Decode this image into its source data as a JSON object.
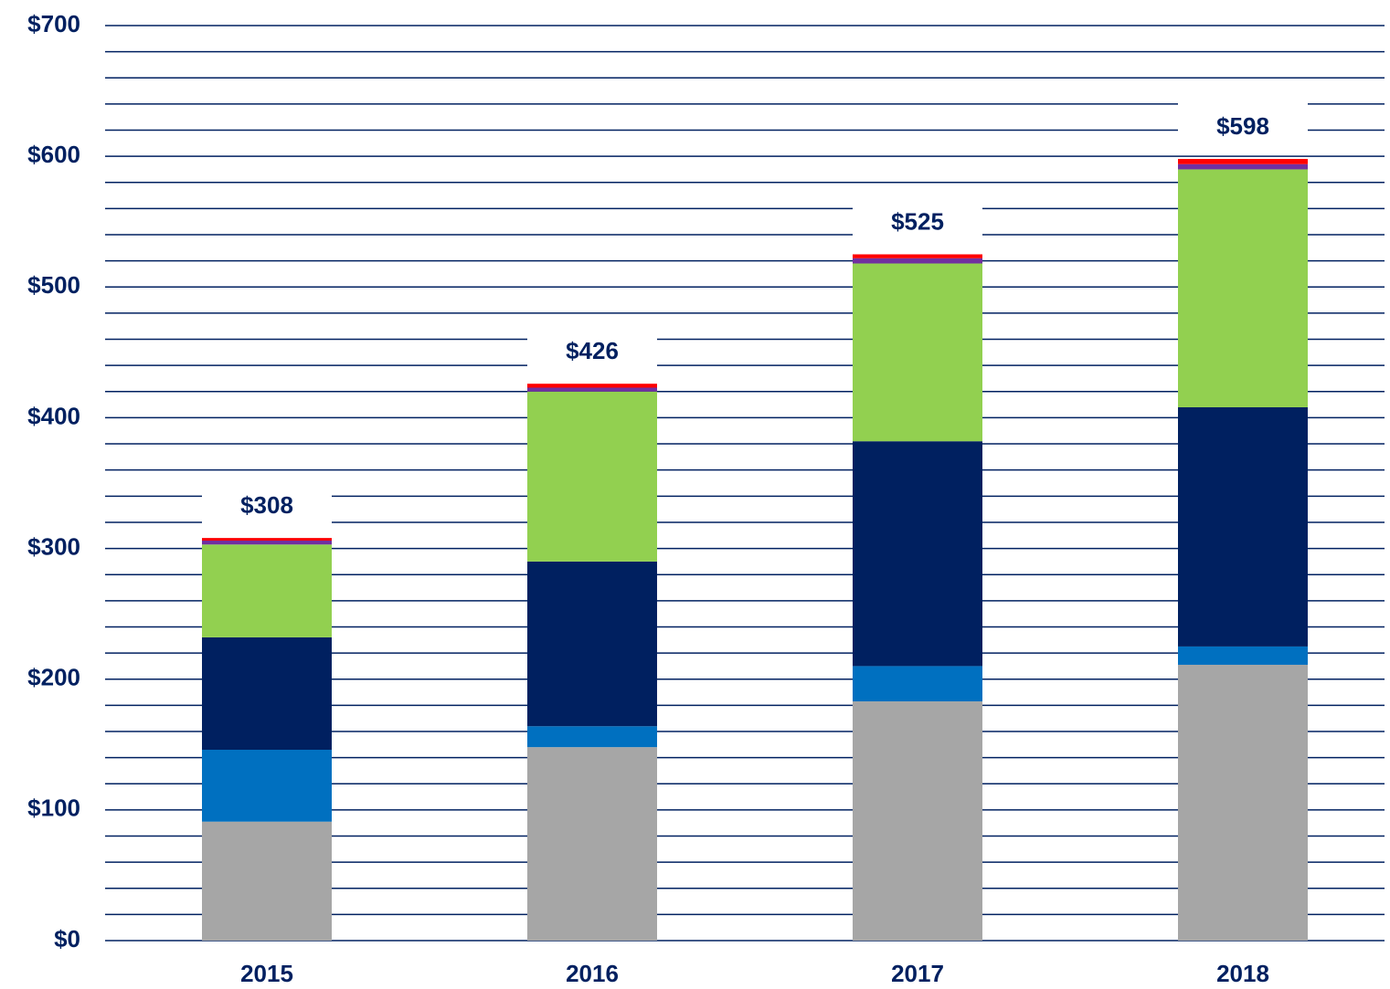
{
  "chart_data": {
    "type": "stacked_bar",
    "categories": [
      "2015",
      "2016",
      "2017",
      "2018"
    ],
    "series": [
      {
        "color": "#a6a6a6",
        "values": [
          91,
          148,
          183,
          211
        ]
      },
      {
        "color": "#0070c0",
        "values": [
          55,
          16,
          27,
          14
        ]
      },
      {
        "color": "#002060",
        "values": [
          86,
          126,
          172,
          183
        ]
      },
      {
        "color": "#92d050",
        "values": [
          71,
          130,
          136,
          182
        ]
      },
      {
        "color": "#7030a0",
        "values": [
          3,
          3,
          4,
          4
        ]
      },
      {
        "color": "#ff0000",
        "values": [
          2,
          3,
          3,
          4
        ]
      }
    ],
    "totals": [
      308,
      426,
      525,
      598
    ],
    "total_labels": [
      "$308",
      "$426",
      "$525",
      "$598"
    ],
    "ylim": [
      0,
      700
    ],
    "yticks": [
      {
        "value": 0,
        "label": "$0"
      },
      {
        "value": 100,
        "label": "$100"
      },
      {
        "value": 200,
        "label": "$200"
      },
      {
        "value": 300,
        "label": "$300"
      },
      {
        "value": 400,
        "label": "$400"
      },
      {
        "value": 500,
        "label": "$500"
      },
      {
        "value": 600,
        "label": "$600"
      },
      {
        "value": 700,
        "label": "$700"
      }
    ],
    "minor_yticks": [
      20,
      40,
      60,
      80,
      120,
      140,
      160,
      180,
      220,
      240,
      260,
      280,
      320,
      340,
      360,
      380,
      420,
      440,
      460,
      480,
      520,
      540,
      560,
      580,
      620,
      640,
      660,
      680
    ],
    "grid": true,
    "grid_color": "#002060",
    "text_color": "#002060"
  }
}
